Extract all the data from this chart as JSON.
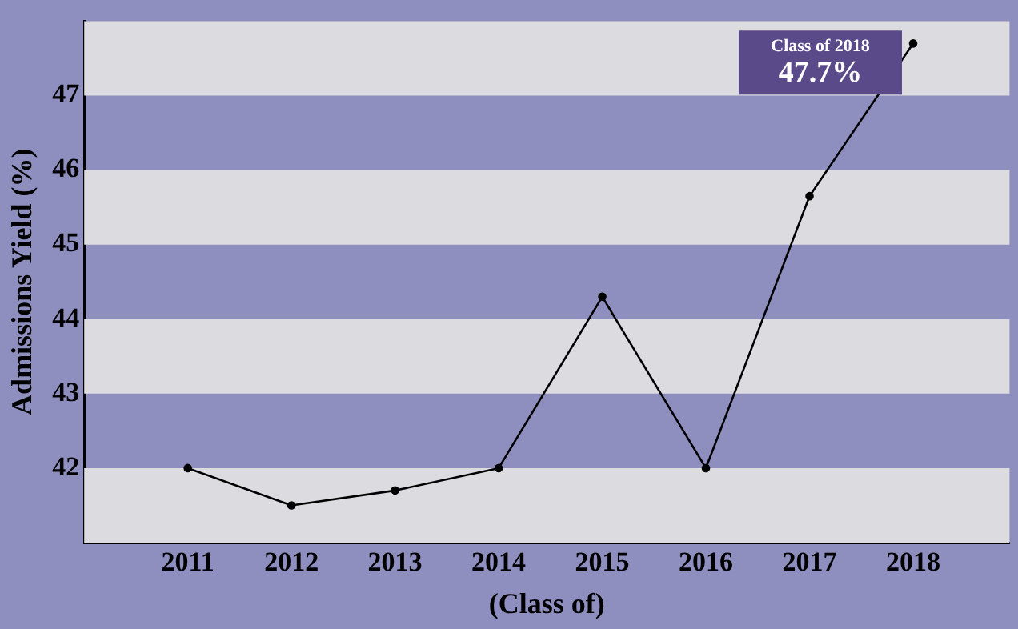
{
  "chart_data": {
    "type": "line",
    "xlabel": "(Class of)",
    "ylabel": "Admissions Yield (%)",
    "categories": [
      "2011",
      "2012",
      "2013",
      "2014",
      "2015",
      "2016",
      "2017",
      "2018"
    ],
    "values": [
      42.0,
      41.5,
      41.7,
      42.0,
      44.3,
      42.0,
      45.65,
      47.7
    ],
    "value_labels": [
      null,
      null,
      null,
      null,
      null,
      null,
      null,
      "47.7%"
    ],
    "color": "#000000",
    "marker": "circle",
    "line_style": "solid",
    "ylim": [
      41,
      48
    ],
    "yticks": [
      42,
      43,
      44,
      45,
      46,
      47
    ],
    "grid": false,
    "legend": false,
    "bands": [
      {
        "axis": "y",
        "from": 47,
        "to": 48,
        "color": "#dcdbe0"
      },
      {
        "axis": "y",
        "from": 45,
        "to": 46,
        "color": "#dcdbe0"
      },
      {
        "axis": "y",
        "from": 43,
        "to": 44,
        "color": "#dcdbe0"
      },
      {
        "axis": "y",
        "from": 41,
        "to": 42,
        "color": "#dcdbe0"
      }
    ],
    "annotations": [
      "Class of 2018"
    ]
  }
}
